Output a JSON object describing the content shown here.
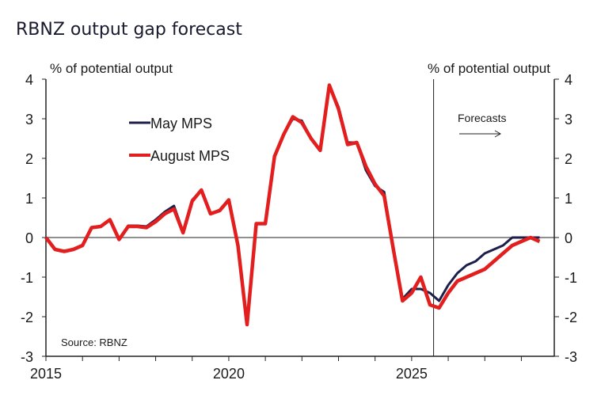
{
  "chart_data": {
    "type": "line",
    "title": "RBNZ output gap forecast",
    "ylabel_left": "% of potential output",
    "ylabel_right": "% of potential output",
    "ylim": [
      -3,
      4
    ],
    "yticks": [
      "4",
      "3",
      "2",
      "1",
      "0",
      "-1",
      "-2",
      "-3"
    ],
    "xlim": [
      2015.0,
      2028.9
    ],
    "xticks": [
      "2015",
      "2020",
      "2025"
    ],
    "forecast_start": 2025.6,
    "forecast_label": "Forecasts",
    "source": "Source: RBNZ",
    "x_start": 2015.0,
    "x_step": 0.25,
    "series": [
      {
        "name": "May MPS",
        "color": "#1c1f4a",
        "values": [
          0.0,
          -0.3,
          -0.35,
          -0.3,
          -0.2,
          0.25,
          0.28,
          0.45,
          -0.05,
          0.3,
          0.3,
          0.28,
          0.45,
          0.65,
          0.8,
          0.15,
          0.95,
          1.2,
          0.6,
          0.7,
          0.95,
          -0.2,
          -2.2,
          0.35,
          0.35,
          2.05,
          2.6,
          3.0,
          2.95,
          2.5,
          2.2,
          3.85,
          3.3,
          2.4,
          2.4,
          1.7,
          1.3,
          1.15,
          -0.3,
          -1.55,
          -1.3,
          -1.3,
          -1.4,
          -1.6,
          -1.2,
          -0.9,
          -0.7,
          -0.6,
          -0.4,
          -0.3,
          -0.2,
          0.0,
          0.0,
          0.0,
          0.0
        ]
      },
      {
        "name": "August MPS",
        "color": "#e31e1e",
        "values": [
          0.0,
          -0.3,
          -0.35,
          -0.3,
          -0.2,
          0.25,
          0.28,
          0.45,
          -0.05,
          0.28,
          0.28,
          0.25,
          0.4,
          0.6,
          0.72,
          0.12,
          0.92,
          1.2,
          0.6,
          0.68,
          0.95,
          -0.2,
          -2.2,
          0.35,
          0.35,
          2.05,
          2.6,
          3.05,
          2.9,
          2.5,
          2.2,
          3.85,
          3.25,
          2.35,
          2.4,
          1.8,
          1.35,
          1.05,
          -0.3,
          -1.6,
          -1.4,
          -1.0,
          -1.7,
          -1.78,
          -1.4,
          -1.1,
          -1.0,
          -0.9,
          -0.8,
          -0.6,
          -0.4,
          -0.2,
          -0.1,
          0.0,
          -0.1
        ]
      }
    ]
  }
}
